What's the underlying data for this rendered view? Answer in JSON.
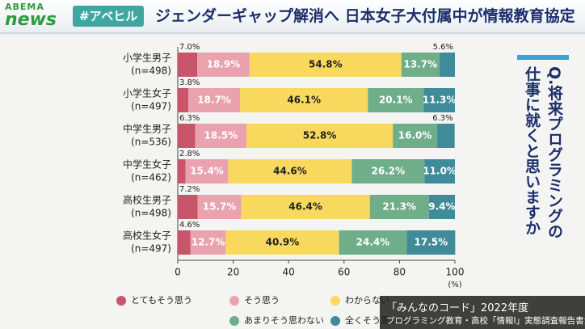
{
  "header": {
    "logo_top": "ABEMA",
    "logo_bottom": "news",
    "tag": "#アベヒル",
    "title": "ジェンダーギャップ解消へ 日本女子大付属中が情報教育協定"
  },
  "question": {
    "lines": [
      "Q.将来プログラミングの",
      "仕事に就くと思いますか"
    ]
  },
  "caption": {
    "lines": [
      "「みんなのコード」2022年度",
      "プログラミング教育・高校「情報Ⅰ」実態調査報告書から"
    ]
  },
  "chart_data": {
    "type": "stacked-bar-horizontal",
    "x_unit_label": "(%)",
    "categories": [
      "小学生男子",
      "小学生女子",
      "中学生男子",
      "中学生女子",
      "高校生男子",
      "高校生女子"
    ],
    "category_sublabels": [
      "(n=498)",
      "(n=497)",
      "(n=536)",
      "(n=462)",
      "(n=498)",
      "(n=497)"
    ],
    "xlim": [
      0,
      100
    ],
    "xticks": [
      0,
      20,
      40,
      60,
      80,
      100
    ],
    "series": [
      {
        "name": "とてもそう思う",
        "color": "#c8566a",
        "values": [
          7.0,
          3.8,
          6.3,
          2.8,
          7.2,
          4.6
        ],
        "value_labels": [
          "7.0%",
          "3.8%",
          "6.3%",
          "2.8%",
          "7.2%",
          "4.6%"
        ]
      },
      {
        "name": "そう思う",
        "color": "#eaa3ae",
        "values": [
          18.9,
          18.7,
          18.5,
          15.4,
          15.7,
          12.7
        ],
        "value_labels": [
          "18.9%",
          "18.7%",
          "18.5%",
          "15.4%",
          "15.7%",
          "12.7%"
        ]
      },
      {
        "name": "わからない",
        "color": "#f8d95e",
        "values": [
          54.8,
          46.1,
          52.8,
          44.6,
          46.4,
          40.9
        ],
        "value_labels": [
          "54.8%",
          "46.1%",
          "52.8%",
          "44.6%",
          "46.4%",
          "40.9%"
        ]
      },
      {
        "name": "あまりそう思わない",
        "color": "#6fae89",
        "values": [
          13.7,
          20.1,
          16.0,
          26.2,
          21.3,
          24.4
        ],
        "value_labels": [
          "13.7%",
          "20.1%",
          "16.0%",
          "26.2%",
          "21.3%",
          "24.4%"
        ]
      },
      {
        "name": "全くそう思わない",
        "color": "#3f8b99",
        "values": [
          5.6,
          11.3,
          6.3,
          11.0,
          9.4,
          17.5
        ],
        "value_labels": [
          "5.6%",
          "11.3%",
          "6.3%",
          "11.0%",
          "9.4%",
          "17.5%"
        ]
      }
    ]
  }
}
